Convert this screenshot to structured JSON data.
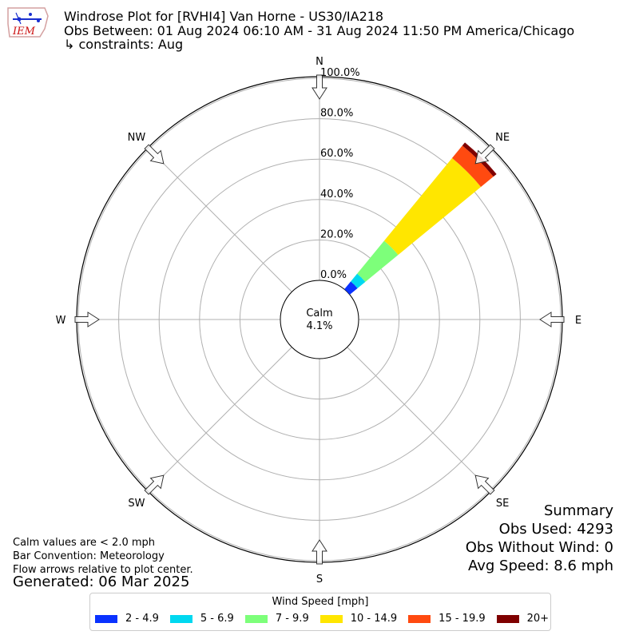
{
  "header": {
    "line1": "Windrose Plot for [RVHI4] Van Horne - US30/IA218",
    "line2": "Obs Between: 01 Aug 2024 06:10 AM - 31 Aug 2024 11:50 PM America/Chicago",
    "line3": "↳ constraints: Aug",
    "logo_text": "IEM"
  },
  "notes": {
    "calm_def": "Calm values are < 2.0 mph",
    "bar_convention": "Bar Convention: Meteorology",
    "flow_arrows": "Flow arrows relative to plot center.",
    "generated": "Generated: 06 Mar 2025"
  },
  "summary": {
    "title": "Summary",
    "obs_used": "Obs Used: 4293",
    "obs_without_wind": "Obs Without Wind: 0",
    "avg_speed": "Avg Speed: 8.6 mph"
  },
  "chart_data": {
    "type": "windrose",
    "calm_label": "Calm",
    "calm_value": "4.1%",
    "radial_ticks": [
      "0.0%",
      "20.0%",
      "40.0%",
      "60.0%",
      "80.0%",
      "100.0%"
    ],
    "radial_range": [
      0,
      100
    ],
    "direction_labels": [
      {
        "label": "N",
        "deg": 0
      },
      {
        "label": "NE",
        "deg": 45
      },
      {
        "label": "E",
        "deg": 90
      },
      {
        "label": "SE",
        "deg": 135
      },
      {
        "label": "S",
        "deg": 180
      },
      {
        "label": "SW",
        "deg": 225
      },
      {
        "label": "W",
        "deg": 270
      },
      {
        "label": "NW",
        "deg": 315
      }
    ],
    "bar_direction_deg": 45,
    "legend_title": "Wind Speed [mph]",
    "bins": [
      {
        "label": "2 - 4.9",
        "color": "#0a32ff",
        "cum_pct": 5
      },
      {
        "label": "5 - 6.9",
        "color": "#00d8f0",
        "cum_pct": 10
      },
      {
        "label": "7 - 9.9",
        "color": "#7dff7a",
        "cum_pct": 31
      },
      {
        "label": "10 - 14.9",
        "color": "#ffe600",
        "cum_pct": 84
      },
      {
        "label": "15 - 19.9",
        "color": "#ff4a10",
        "cum_pct": 92
      },
      {
        "label": "20+",
        "color": "#7f0000",
        "cum_pct": 94
      }
    ],
    "grid": true
  }
}
